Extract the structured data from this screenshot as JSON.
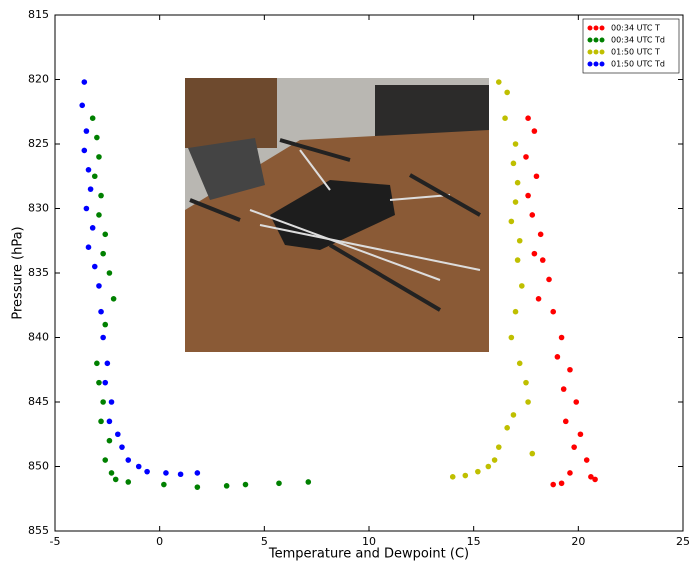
{
  "chart_data": {
    "type": "scatter",
    "xlabel": "Temperature and Dewpoint (C)",
    "ylabel": "Pressure (hPa)",
    "xlim": [
      -5,
      25
    ],
    "xticks": [
      -5,
      0,
      5,
      10,
      15,
      20,
      25
    ],
    "ylim": [
      815,
      855
    ],
    "yticks": [
      815,
      820,
      825,
      830,
      835,
      840,
      845,
      850,
      855
    ],
    "y_inverted": true,
    "legend": "upper right",
    "series": [
      {
        "name": "00:34 UTC T",
        "color": "#ff0000",
        "x": [
          17.6,
          17.9,
          17.5,
          18.0,
          17.6,
          17.8,
          18.2,
          17.9,
          18.3,
          18.6,
          18.1,
          18.8,
          19.2,
          19.0,
          19.6,
          19.3,
          19.9,
          19.4,
          20.1,
          19.8,
          20.4,
          19.6,
          20.6,
          20.8,
          19.2,
          18.8
        ],
        "y": [
          823,
          824,
          826,
          827.5,
          829,
          830.5,
          832,
          833.5,
          834,
          835.5,
          837,
          838,
          840,
          841.5,
          842.5,
          844,
          845,
          846.5,
          847.5,
          848.5,
          849.5,
          850.5,
          850.8,
          851,
          851.3,
          851.4
        ]
      },
      {
        "name": "00:34 UTC Td",
        "color": "#008000",
        "x": [
          -3.2,
          -3.0,
          -2.9,
          -3.1,
          -2.8,
          -2.9,
          -2.6,
          -2.7,
          -2.4,
          -2.2,
          -2.6,
          -3.0,
          -2.9,
          -2.7,
          -2.8,
          -2.4,
          -2.6,
          -2.3,
          -2.1,
          -1.5,
          0.2,
          1.8,
          3.2,
          4.1,
          5.7,
          7.1
        ],
        "y": [
          823,
          824.5,
          826,
          827.5,
          829,
          830.5,
          832,
          833.5,
          835,
          837,
          839,
          842,
          843.5,
          845,
          846.5,
          848,
          849.5,
          850.5,
          851,
          851.2,
          851.4,
          851.6,
          851.5,
          851.4,
          851.3,
          851.2
        ]
      },
      {
        "name": "01:50 UTC T",
        "color": "#bfbf00",
        "x": [
          16.2,
          16.6,
          16.5,
          17.0,
          16.9,
          17.1,
          17.0,
          16.8,
          17.2,
          17.1,
          17.3,
          17.0,
          16.8,
          17.2,
          17.5,
          17.6,
          16.9,
          16.6,
          16.2,
          17.8,
          16.0,
          15.7,
          15.2,
          14.6,
          14.0
        ],
        "y": [
          820.2,
          821,
          823,
          825,
          826.5,
          828,
          829.5,
          831,
          832.5,
          834,
          836,
          838,
          840,
          842,
          843.5,
          845,
          846,
          847,
          848.5,
          849,
          849.5,
          850,
          850.4,
          850.7,
          850.8
        ]
      },
      {
        "name": "01:50 UTC Td",
        "color": "#0000ff",
        "x": [
          -3.6,
          -3.7,
          -3.5,
          -3.6,
          -3.4,
          -3.3,
          -3.5,
          -3.2,
          -3.4,
          -3.1,
          -2.9,
          -2.8,
          -2.7,
          -2.5,
          -2.6,
          -2.3,
          -2.4,
          -2.0,
          -1.8,
          -1.5,
          -1.0,
          -0.6,
          0.3,
          1.0,
          1.8
        ],
        "y": [
          820.2,
          822,
          824,
          825.5,
          827,
          828.5,
          830,
          831.5,
          833,
          834.5,
          836,
          838,
          840,
          842,
          843.5,
          845,
          846.5,
          847.5,
          848.5,
          849.5,
          850,
          850.4,
          850.5,
          850.6,
          850.5
        ]
      }
    ]
  }
}
